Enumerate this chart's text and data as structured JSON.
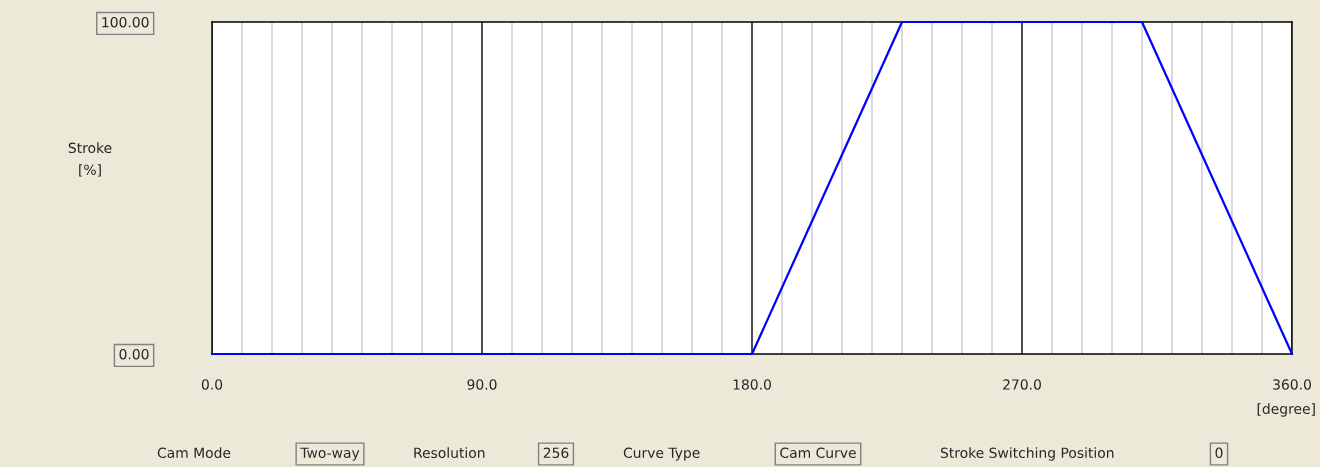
{
  "chart_data": {
    "type": "line",
    "ylabel": "Stroke [%]",
    "xlabel": "[degree]",
    "x": [
      0,
      180,
      230,
      310,
      360
    ],
    "series": [
      {
        "color": "#0000ff",
        "values": [
          0,
          0,
          100,
          100,
          0
        ]
      }
    ],
    "xlim": [
      0,
      360
    ],
    "ylim": [
      0,
      100
    ],
    "xticks": [
      {
        "value": 0,
        "label": "0.0"
      },
      {
        "value": 10,
        "label": null
      },
      {
        "value": 20,
        "label": null
      },
      {
        "value": 30,
        "label": null
      },
      {
        "value": 40,
        "label": null
      },
      {
        "value": 50,
        "label": null
      },
      {
        "value": 60,
        "label": null
      },
      {
        "value": 70,
        "label": null
      },
      {
        "value": 80,
        "label": null
      },
      {
        "value": 90,
        "label": "90.0"
      },
      {
        "value": 100,
        "label": null
      },
      {
        "value": 110,
        "label": null
      },
      {
        "value": 120,
        "label": null
      },
      {
        "value": 130,
        "label": null
      },
      {
        "value": 140,
        "label": null
      },
      {
        "value": 150,
        "label": null
      },
      {
        "value": 160,
        "label": null
      },
      {
        "value": 170,
        "label": null
      },
      {
        "value": 180,
        "label": "180.0"
      },
      {
        "value": 190,
        "label": null
      },
      {
        "value": 200,
        "label": null
      },
      {
        "value": 210,
        "label": null
      },
      {
        "value": 220,
        "label": null
      },
      {
        "value": 230,
        "label": null
      },
      {
        "value": 240,
        "label": null
      },
      {
        "value": 250,
        "label": null
      },
      {
        "value": 260,
        "label": null
      },
      {
        "value": 270,
        "label": "270.0"
      },
      {
        "value": 280,
        "label": null
      },
      {
        "value": 290,
        "label": null
      },
      {
        "value": 300,
        "label": null
      },
      {
        "value": 310,
        "label": null
      },
      {
        "value": 320,
        "label": null
      },
      {
        "value": 330,
        "label": null
      },
      {
        "value": 340,
        "label": null
      },
      {
        "value": 350,
        "label": null
      },
      {
        "value": 360,
        "label": "360.0"
      }
    ],
    "yticks": [
      {
        "value": 0,
        "label": "0.00"
      },
      {
        "value": 100,
        "label": "100.00"
      }
    ],
    "grid": "x",
    "legend": false,
    "marker": "none",
    "line_style": "solid",
    "annotations": [
      "Cam Mode",
      "Two-way",
      "Resolution",
      "256",
      "Curve Type",
      "Cam Curve",
      "Stroke Switching Position",
      "0"
    ]
  }
}
